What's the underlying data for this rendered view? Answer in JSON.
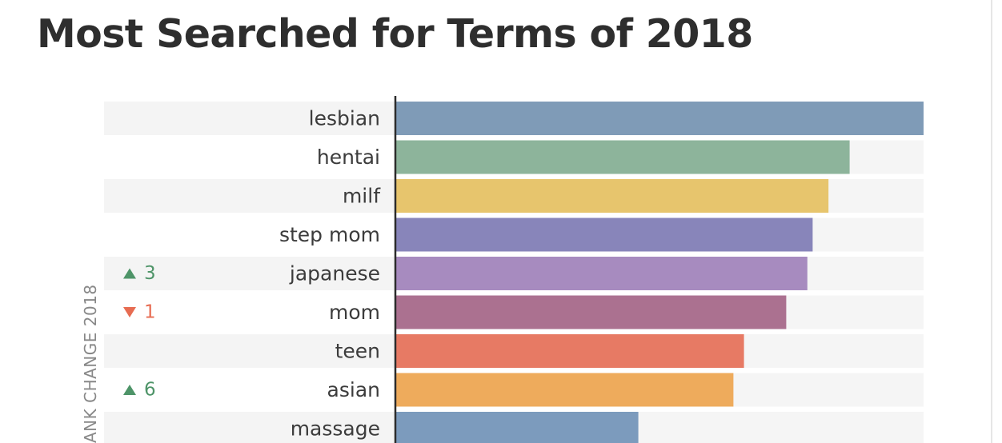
{
  "chart_data": {
    "type": "bar",
    "orientation": "horizontal",
    "title": "Most Searched for Terms of 2018",
    "side_label": "ANK CHANGE 2018",
    "categories": [
      "lesbian",
      "hentai",
      "milf",
      "step mom",
      "japanese",
      "mom",
      "teen",
      "asian",
      "massage"
    ],
    "values": [
      100,
      86,
      82,
      79,
      78,
      74,
      66,
      64,
      46
    ],
    "xlim": [
      0,
      100
    ],
    "grid": false,
    "legend": "none",
    "colors": [
      "#7f9bb7",
      "#8db49b",
      "#e7c56d",
      "#8885ba",
      "#a78bbf",
      "#ab7190",
      "#e77a64",
      "#eeab5c",
      "#7c9bbd"
    ],
    "rank_change": [
      {
        "category": "japanese",
        "direction": "up",
        "value": "3"
      },
      {
        "category": "mom",
        "direction": "down",
        "value": "1"
      },
      {
        "category": "asian",
        "direction": "up",
        "value": "6"
      }
    ],
    "up_color": "#4e9468",
    "down_color": "#e76c52"
  }
}
